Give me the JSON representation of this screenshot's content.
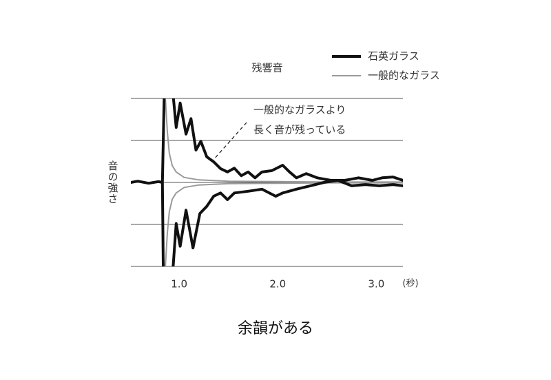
{
  "chart_data": {
    "type": "line",
    "title": "残響音",
    "y_label": "音の強さ",
    "x_unit_label": "(秒)",
    "annotation": [
      "一般的なガラスより",
      "長く音が残っている"
    ],
    "caption": "余韻がある",
    "xlim": [
      0.51,
      3.27
    ],
    "xticks": [
      {
        "value": 1,
        "label": "1.0"
      },
      {
        "value": 2,
        "label": "2.0"
      },
      {
        "value": 3,
        "label": "3.0"
      }
    ],
    "ylim": [
      -2,
      2
    ],
    "yticks": [
      -2,
      -1,
      0,
      1,
      2
    ],
    "grid": true,
    "legend": "top-right",
    "series": [
      {
        "name": "石英ガラス",
        "color": "#111111",
        "width": 4,
        "x": [
          0.51,
          0.58,
          0.69,
          0.79,
          0.83,
          0.85,
          0.93,
          0.97,
          1.01,
          1.07,
          1.12,
          1.17,
          1.22,
          1.28,
          1.35,
          1.42,
          1.49,
          1.56,
          1.63,
          1.7,
          1.77,
          1.84,
          1.94,
          2.05,
          2.12,
          2.19,
          2.29,
          2.4,
          2.54,
          2.68,
          2.82,
          2.96,
          3.06,
          3.17,
          3.27,
          null,
          0.83,
          0.84,
          0.93,
          0.97,
          1.01,
          1.07,
          1.14,
          1.21,
          1.28,
          1.35,
          1.42,
          1.49,
          1.56,
          1.7,
          1.84,
          1.98,
          2.05,
          2.19,
          2.33,
          2.47,
          2.61,
          2.75,
          2.89,
          3.03,
          3.17,
          3.27
        ],
        "values": [
          0,
          0.03,
          -0.02,
          0.02,
          0,
          2.3,
          2.3,
          1.31,
          1.89,
          1.15,
          1.52,
          0.77,
          0.98,
          0.61,
          0.49,
          0.33,
          0.25,
          0.34,
          0.16,
          0.25,
          0.11,
          0.25,
          0.28,
          0.41,
          0.25,
          0.11,
          0.21,
          0.11,
          0.05,
          0.05,
          0.11,
          0.05,
          0.11,
          0.13,
          0.05,
          null,
          0,
          -2.3,
          -2.3,
          -0.98,
          -1.52,
          -0.66,
          -1.56,
          -0.74,
          -0.57,
          -0.33,
          -0.25,
          -0.41,
          -0.25,
          -0.21,
          -0.16,
          -0.33,
          -0.25,
          -0.16,
          -0.08,
          0,
          0.05,
          -0.08,
          -0.05,
          -0.08,
          -0.05,
          -0.08
        ]
      },
      {
        "name": "一般的なガラス",
        "color": "#9a9a9a",
        "width": 2,
        "x": [
          0.84,
          0.86,
          0.88,
          0.9,
          0.93,
          0.97,
          1.05,
          1.2,
          1.5,
          2.0,
          2.5,
          3.27,
          null,
          0.84,
          0.86,
          0.88,
          0.9,
          0.93,
          0.97,
          1.05,
          1.2,
          1.5,
          2.0,
          2.5,
          3.27
        ],
        "values": [
          2.3,
          2.0,
          1.2,
          0.7,
          0.4,
          0.25,
          0.12,
          0.06,
          0.03,
          0.02,
          0.01,
          0.01,
          null,
          -2.3,
          -2.0,
          -1.2,
          -0.7,
          -0.4,
          -0.25,
          -0.12,
          -0.06,
          -0.03,
          -0.02,
          -0.01,
          -0.01
        ]
      }
    ]
  }
}
